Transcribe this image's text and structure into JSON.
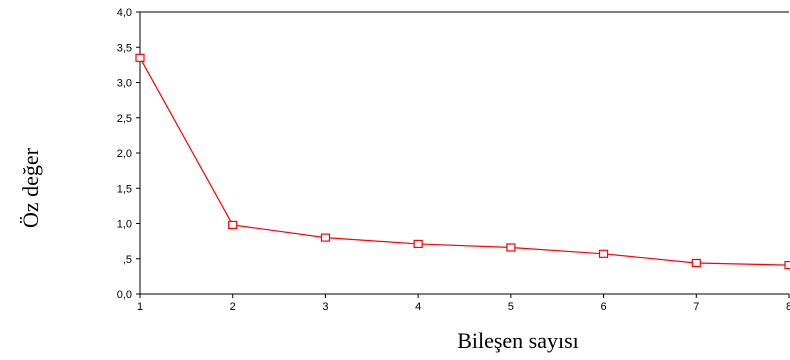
{
  "chart_data": {
    "type": "line",
    "xlabel": "Bileşen sayısı",
    "ylabel": "Öz değer",
    "x": [
      1,
      2,
      3,
      4,
      5,
      6,
      7,
      8
    ],
    "x_tick_labels": [
      "1",
      "2",
      "3",
      "4",
      "5",
      "6",
      "7",
      "8"
    ],
    "y_ticks": [
      0,
      0.5,
      1,
      1.5,
      2,
      2.5,
      3,
      3.5,
      4
    ],
    "y_tick_labels": [
      "0,0",
      ",5",
      "1,0",
      "1,5",
      "2,0",
      "2,5",
      "3,0",
      "3,5",
      "4,0"
    ],
    "xlim": [
      1,
      8
    ],
    "ylim": [
      0,
      4
    ],
    "grid": false,
    "series": [
      {
        "values": [
          3.35,
          0.98,
          0.8,
          0.71,
          0.66,
          0.57,
          0.44,
          0.41
        ],
        "color": "#ff0000",
        "marker": "open-square"
      }
    ]
  }
}
